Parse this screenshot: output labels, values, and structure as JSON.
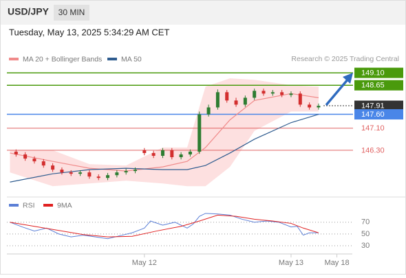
{
  "header": {
    "symbol": "USD/JPY",
    "interval": "30 MIN",
    "timestamp": "Tuesday, May 13, 2025 5:34:29 AM CET",
    "credit": "Research © 2025 Trading Central"
  },
  "chart_data": [
    {
      "type": "candlestick",
      "xlim": [
        -22.5,
        33.8
      ],
      "ylim": [
        144.66,
        149.5
      ],
      "up_color": "#2e7d32",
      "down_color": "#d32f2f",
      "x": [
        -21,
        -19.5,
        -18,
        -16.5,
        -15,
        -13.5,
        -12,
        -10.5,
        -9,
        -7.5,
        -6,
        -4.5,
        -3,
        -1.5,
        0,
        1.5,
        3,
        4.5,
        6,
        7.5,
        9,
        10.5,
        12,
        13.5,
        15,
        16.5,
        18,
        19.5,
        21,
        22.5,
        24,
        25.5,
        27,
        28.5
      ],
      "open": [
        146.25,
        146.15,
        146.0,
        145.9,
        145.75,
        145.6,
        145.5,
        145.45,
        145.5,
        145.35,
        145.3,
        145.4,
        145.5,
        145.55,
        146.3,
        146.2,
        146.1,
        146.3,
        146.05,
        146.15,
        146.25,
        147.6,
        147.85,
        148.4,
        148.1,
        147.95,
        148.2,
        148.45,
        148.35,
        148.4,
        148.3,
        148.35,
        147.95,
        147.85
      ],
      "high": [
        146.33,
        146.23,
        146.08,
        145.98,
        145.83,
        145.68,
        145.58,
        145.58,
        145.58,
        145.43,
        145.48,
        145.58,
        145.63,
        145.68,
        146.38,
        146.28,
        146.38,
        146.38,
        146.23,
        146.33,
        147.7,
        147.95,
        148.5,
        148.48,
        148.2,
        148.28,
        148.53,
        148.53,
        148.48,
        148.48,
        148.43,
        148.43,
        148.03,
        147.99
      ],
      "low": [
        146.07,
        145.92,
        145.82,
        145.67,
        145.52,
        145.42,
        145.37,
        145.37,
        145.27,
        145.22,
        145.22,
        145.32,
        145.42,
        145.47,
        146.12,
        146.02,
        146.02,
        145.97,
        145.97,
        146.07,
        146.17,
        147.52,
        147.77,
        148.02,
        147.87,
        147.87,
        148.12,
        148.27,
        148.27,
        148.22,
        148.22,
        147.87,
        147.77,
        147.77
      ],
      "close": [
        146.15,
        146.0,
        145.9,
        145.75,
        145.6,
        145.5,
        145.45,
        145.5,
        145.35,
        145.3,
        145.4,
        145.5,
        145.55,
        145.6,
        146.2,
        146.1,
        146.3,
        146.05,
        146.15,
        146.25,
        147.6,
        147.85,
        148.4,
        148.1,
        147.95,
        148.2,
        148.45,
        148.35,
        148.4,
        148.3,
        148.35,
        147.95,
        147.85,
        147.91
      ],
      "series": [
        {
          "name": "MA 20 + Bollinger Bands",
          "color": "#f08a8a",
          "band_color": "#fde0e0",
          "x": [
            -22,
            -15,
            -9,
            -3,
            3,
            7,
            10,
            14,
            18,
            24,
            28.5
          ],
          "values": [
            146.2,
            145.9,
            145.65,
            145.55,
            145.7,
            145.9,
            146.4,
            147.4,
            148.1,
            148.35,
            148.2
          ],
          "upper": [
            146.3,
            146.3,
            145.8,
            145.75,
            146.4,
            146.4,
            148.6,
            148.9,
            148.85,
            148.65,
            148.6
          ],
          "lower": [
            145.5,
            145.0,
            145.1,
            145.2,
            145.1,
            145.0,
            145.0,
            145.7,
            147.0,
            147.7,
            147.7
          ]
        },
        {
          "name": "MA 50",
          "color": "#2f5c8f",
          "x": [
            -22,
            -15,
            -9,
            -3,
            3,
            7,
            10,
            14,
            18,
            24,
            28.5
          ],
          "values": [
            145.15,
            145.45,
            145.6,
            145.65,
            145.6,
            145.6,
            145.75,
            146.2,
            146.7,
            147.3,
            147.6
          ]
        }
      ],
      "levels": [
        {
          "value": 149.1,
          "label": "149.10",
          "color": "#4a9a0c",
          "boxed": true,
          "line_style": "solid"
        },
        {
          "value": 148.65,
          "label": "148.65",
          "color": "#4a9a0c",
          "boxed": true,
          "line_style": "solid"
        },
        {
          "value": 147.91,
          "label": "147.91",
          "color": "#333333",
          "boxed": true,
          "line_style": "dotted"
        },
        {
          "value": 147.6,
          "label": "147.60",
          "color": "#4a86e8",
          "boxed": true,
          "line_style": "solid"
        },
        {
          "value": 147.1,
          "label": "147.10",
          "color": "#e06060",
          "boxed": false,
          "line_style": "solid"
        },
        {
          "value": 146.3,
          "label": "146.30",
          "color": "#e06060",
          "boxed": false,
          "line_style": "solid"
        }
      ]
    },
    {
      "type": "line",
      "xlim": [
        -22.5,
        33.8
      ],
      "ylim": [
        16,
        86
      ],
      "yticks": [
        30,
        50,
        70
      ],
      "grid": true,
      "xticks": [
        {
          "value": 0,
          "label": "May 12"
        },
        {
          "value": 24,
          "label": "May 13"
        },
        {
          "value": 31.5,
          "label": "May 18"
        }
      ],
      "series": [
        {
          "name": "RSI",
          "color": "#5b7fd6",
          "x": [
            -22,
            -20,
            -18,
            -16,
            -14,
            -12,
            -10,
            -8,
            -6,
            -4,
            -2,
            0,
            1,
            3,
            5,
            7,
            8,
            9,
            10,
            12,
            14,
            16,
            18,
            20,
            22,
            24,
            25,
            26,
            27,
            28.5
          ],
          "values": [
            70,
            62,
            55,
            60,
            50,
            45,
            48,
            45,
            42,
            47,
            52,
            60,
            72,
            65,
            70,
            60,
            67,
            80,
            85,
            84,
            82,
            75,
            70,
            72,
            70,
            62,
            63,
            48,
            52,
            52
          ]
        },
        {
          "name": "9MA",
          "color": "#e02020",
          "x": [
            -22,
            -18,
            -14,
            -10,
            -6,
            -2,
            2,
            6,
            9,
            12,
            15,
            18,
            21,
            24,
            26,
            28.5
          ],
          "values": [
            70,
            63,
            56,
            49,
            45,
            46,
            55,
            63,
            72,
            82,
            80,
            75,
            72,
            68,
            60,
            52
          ]
        }
      ]
    }
  ]
}
